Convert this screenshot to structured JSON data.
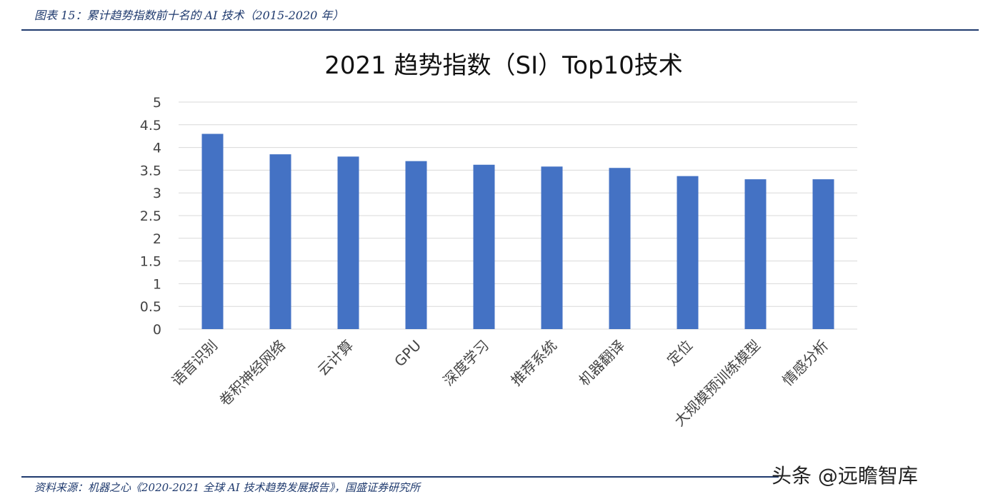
{
  "header": {
    "caption": "图表 15：累计趋势指数前十名的 AI 技术（2015-2020 年）"
  },
  "footer": {
    "source": "资料来源：机器之心《2020-2021 全球 AI 技术趋势发展报告》，国盛证券研究所",
    "watermark": "头条 @远瞻智库"
  },
  "colors": {
    "bar": "#4472C4",
    "grid": "#d9d9d9",
    "accent": "#1f3a6e"
  },
  "chart_data": {
    "type": "bar",
    "title": "2021 趋势指数（SI）Top10技术",
    "xlabel": "",
    "ylabel": "",
    "ylim": [
      0,
      5
    ],
    "yticks": [
      "0",
      "0.5",
      "1",
      "1.5",
      "2",
      "2.5",
      "3",
      "3.5",
      "4",
      "4.5",
      "5"
    ],
    "grid": true,
    "categories": [
      "语音识别",
      "卷积神经网络",
      "云计算",
      "GPU",
      "深度学习",
      "推荐系统",
      "机器翻译",
      "定位",
      "大规模预训练模型",
      "情感分析"
    ],
    "values": [
      4.3,
      3.85,
      3.8,
      3.7,
      3.62,
      3.58,
      3.55,
      3.37,
      3.3,
      3.3
    ]
  }
}
